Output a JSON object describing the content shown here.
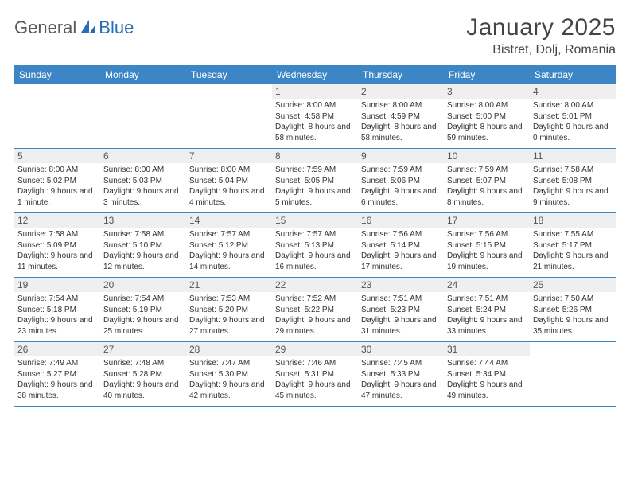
{
  "logo": {
    "part1": "General",
    "part2": "Blue"
  },
  "title": "January 2025",
  "location": "Bistret, Dolj, Romania",
  "colors": {
    "header_bg": "#3d86c6",
    "header_text": "#ffffff",
    "daynum_bg": "#efefef",
    "row_border": "#3d86c6",
    "logo_gray": "#5a5a5a",
    "logo_blue": "#2a6db2",
    "text": "#333333",
    "page_bg": "#ffffff"
  },
  "weekdays": [
    "Sunday",
    "Monday",
    "Tuesday",
    "Wednesday",
    "Thursday",
    "Friday",
    "Saturday"
  ],
  "weeks": [
    [
      {
        "n": "",
        "sunrise": "",
        "sunset": "",
        "daylight": ""
      },
      {
        "n": "",
        "sunrise": "",
        "sunset": "",
        "daylight": ""
      },
      {
        "n": "",
        "sunrise": "",
        "sunset": "",
        "daylight": ""
      },
      {
        "n": "1",
        "sunrise": "Sunrise: 8:00 AM",
        "sunset": "Sunset: 4:58 PM",
        "daylight": "Daylight: 8 hours and 58 minutes."
      },
      {
        "n": "2",
        "sunrise": "Sunrise: 8:00 AM",
        "sunset": "Sunset: 4:59 PM",
        "daylight": "Daylight: 8 hours and 58 minutes."
      },
      {
        "n": "3",
        "sunrise": "Sunrise: 8:00 AM",
        "sunset": "Sunset: 5:00 PM",
        "daylight": "Daylight: 8 hours and 59 minutes."
      },
      {
        "n": "4",
        "sunrise": "Sunrise: 8:00 AM",
        "sunset": "Sunset: 5:01 PM",
        "daylight": "Daylight: 9 hours and 0 minutes."
      }
    ],
    [
      {
        "n": "5",
        "sunrise": "Sunrise: 8:00 AM",
        "sunset": "Sunset: 5:02 PM",
        "daylight": "Daylight: 9 hours and 1 minute."
      },
      {
        "n": "6",
        "sunrise": "Sunrise: 8:00 AM",
        "sunset": "Sunset: 5:03 PM",
        "daylight": "Daylight: 9 hours and 3 minutes."
      },
      {
        "n": "7",
        "sunrise": "Sunrise: 8:00 AM",
        "sunset": "Sunset: 5:04 PM",
        "daylight": "Daylight: 9 hours and 4 minutes."
      },
      {
        "n": "8",
        "sunrise": "Sunrise: 7:59 AM",
        "sunset": "Sunset: 5:05 PM",
        "daylight": "Daylight: 9 hours and 5 minutes."
      },
      {
        "n": "9",
        "sunrise": "Sunrise: 7:59 AM",
        "sunset": "Sunset: 5:06 PM",
        "daylight": "Daylight: 9 hours and 6 minutes."
      },
      {
        "n": "10",
        "sunrise": "Sunrise: 7:59 AM",
        "sunset": "Sunset: 5:07 PM",
        "daylight": "Daylight: 9 hours and 8 minutes."
      },
      {
        "n": "11",
        "sunrise": "Sunrise: 7:58 AM",
        "sunset": "Sunset: 5:08 PM",
        "daylight": "Daylight: 9 hours and 9 minutes."
      }
    ],
    [
      {
        "n": "12",
        "sunrise": "Sunrise: 7:58 AM",
        "sunset": "Sunset: 5:09 PM",
        "daylight": "Daylight: 9 hours and 11 minutes."
      },
      {
        "n": "13",
        "sunrise": "Sunrise: 7:58 AM",
        "sunset": "Sunset: 5:10 PM",
        "daylight": "Daylight: 9 hours and 12 minutes."
      },
      {
        "n": "14",
        "sunrise": "Sunrise: 7:57 AM",
        "sunset": "Sunset: 5:12 PM",
        "daylight": "Daylight: 9 hours and 14 minutes."
      },
      {
        "n": "15",
        "sunrise": "Sunrise: 7:57 AM",
        "sunset": "Sunset: 5:13 PM",
        "daylight": "Daylight: 9 hours and 16 minutes."
      },
      {
        "n": "16",
        "sunrise": "Sunrise: 7:56 AM",
        "sunset": "Sunset: 5:14 PM",
        "daylight": "Daylight: 9 hours and 17 minutes."
      },
      {
        "n": "17",
        "sunrise": "Sunrise: 7:56 AM",
        "sunset": "Sunset: 5:15 PM",
        "daylight": "Daylight: 9 hours and 19 minutes."
      },
      {
        "n": "18",
        "sunrise": "Sunrise: 7:55 AM",
        "sunset": "Sunset: 5:17 PM",
        "daylight": "Daylight: 9 hours and 21 minutes."
      }
    ],
    [
      {
        "n": "19",
        "sunrise": "Sunrise: 7:54 AM",
        "sunset": "Sunset: 5:18 PM",
        "daylight": "Daylight: 9 hours and 23 minutes."
      },
      {
        "n": "20",
        "sunrise": "Sunrise: 7:54 AM",
        "sunset": "Sunset: 5:19 PM",
        "daylight": "Daylight: 9 hours and 25 minutes."
      },
      {
        "n": "21",
        "sunrise": "Sunrise: 7:53 AM",
        "sunset": "Sunset: 5:20 PM",
        "daylight": "Daylight: 9 hours and 27 minutes."
      },
      {
        "n": "22",
        "sunrise": "Sunrise: 7:52 AM",
        "sunset": "Sunset: 5:22 PM",
        "daylight": "Daylight: 9 hours and 29 minutes."
      },
      {
        "n": "23",
        "sunrise": "Sunrise: 7:51 AM",
        "sunset": "Sunset: 5:23 PM",
        "daylight": "Daylight: 9 hours and 31 minutes."
      },
      {
        "n": "24",
        "sunrise": "Sunrise: 7:51 AM",
        "sunset": "Sunset: 5:24 PM",
        "daylight": "Daylight: 9 hours and 33 minutes."
      },
      {
        "n": "25",
        "sunrise": "Sunrise: 7:50 AM",
        "sunset": "Sunset: 5:26 PM",
        "daylight": "Daylight: 9 hours and 35 minutes."
      }
    ],
    [
      {
        "n": "26",
        "sunrise": "Sunrise: 7:49 AM",
        "sunset": "Sunset: 5:27 PM",
        "daylight": "Daylight: 9 hours and 38 minutes."
      },
      {
        "n": "27",
        "sunrise": "Sunrise: 7:48 AM",
        "sunset": "Sunset: 5:28 PM",
        "daylight": "Daylight: 9 hours and 40 minutes."
      },
      {
        "n": "28",
        "sunrise": "Sunrise: 7:47 AM",
        "sunset": "Sunset: 5:30 PM",
        "daylight": "Daylight: 9 hours and 42 minutes."
      },
      {
        "n": "29",
        "sunrise": "Sunrise: 7:46 AM",
        "sunset": "Sunset: 5:31 PM",
        "daylight": "Daylight: 9 hours and 45 minutes."
      },
      {
        "n": "30",
        "sunrise": "Sunrise: 7:45 AM",
        "sunset": "Sunset: 5:33 PM",
        "daylight": "Daylight: 9 hours and 47 minutes."
      },
      {
        "n": "31",
        "sunrise": "Sunrise: 7:44 AM",
        "sunset": "Sunset: 5:34 PM",
        "daylight": "Daylight: 9 hours and 49 minutes."
      },
      {
        "n": "",
        "sunrise": "",
        "sunset": "",
        "daylight": ""
      }
    ]
  ]
}
